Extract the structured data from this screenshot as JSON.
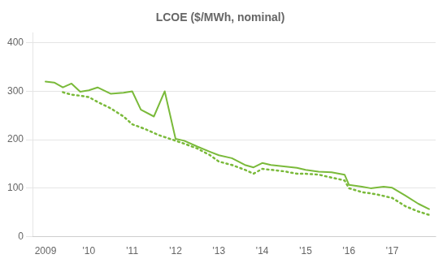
{
  "chart_data": {
    "type": "line",
    "title": "LCOE ($/MWh, nominal)",
    "series": [
      {
        "color": "#7aba3a",
        "line_style": "solid",
        "x": [
          2009.0,
          2009.2,
          2009.4,
          2009.6,
          2009.8,
          2010.0,
          2010.2,
          2010.5,
          2010.8,
          2011.0,
          2011.2,
          2011.5,
          2011.75,
          2012.0,
          2012.2,
          2012.5,
          2012.8,
          2013.0,
          2013.3,
          2013.6,
          2013.8,
          2014.0,
          2014.2,
          2014.5,
          2014.8,
          2015.0,
          2015.3,
          2015.6,
          2015.9,
          2016.0,
          2016.3,
          2016.5,
          2016.8,
          2017.0,
          2017.3,
          2017.6,
          2017.85
        ],
        "values": [
          320,
          318,
          308,
          316,
          299,
          302,
          308,
          295,
          297,
          300,
          262,
          248,
          300,
          202,
          198,
          186,
          175,
          168,
          162,
          148,
          143,
          152,
          148,
          145,
          142,
          138,
          134,
          133,
          128,
          107,
          103,
          100,
          103,
          101,
          85,
          68,
          57
        ]
      },
      {
        "color": "#7aba3a",
        "line_style": "dotted",
        "x": [
          2009.4,
          2009.6,
          2009.8,
          2010.0,
          2010.2,
          2010.5,
          2010.8,
          2011.0,
          2011.3,
          2011.6,
          2012.0,
          2012.2,
          2012.5,
          2012.8,
          2013.0,
          2013.3,
          2013.6,
          2013.8,
          2014.0,
          2014.2,
          2014.5,
          2014.8,
          2015.0,
          2015.3,
          2015.6,
          2015.9,
          2016.0,
          2016.3,
          2016.6,
          2017.0,
          2017.3,
          2017.6,
          2017.85
        ],
        "values": [
          298,
          293,
          291,
          288,
          278,
          265,
          248,
          232,
          222,
          210,
          198,
          192,
          182,
          168,
          155,
          148,
          138,
          130,
          140,
          138,
          135,
          130,
          130,
          128,
          122,
          116,
          100,
          92,
          88,
          80,
          63,
          52,
          45
        ]
      }
    ],
    "xlim": [
      2008.7,
      2018.0
    ],
    "xticks": [
      2009,
      {
        "value": 2010,
        "label": "'10"
      },
      {
        "value": 2011,
        "label": "'11"
      },
      {
        "value": 2012,
        "label": "'12"
      },
      {
        "value": 2013,
        "label": "'13"
      },
      {
        "value": 2014,
        "label": "'14"
      },
      {
        "value": 2015,
        "label": "'15"
      },
      {
        "value": 2016,
        "label": "'16"
      },
      {
        "value": 2017,
        "label": "'17"
      }
    ],
    "ylim": [
      0,
      420
    ],
    "yticks": [
      0,
      100,
      200,
      300,
      400
    ],
    "grid": "y"
  }
}
